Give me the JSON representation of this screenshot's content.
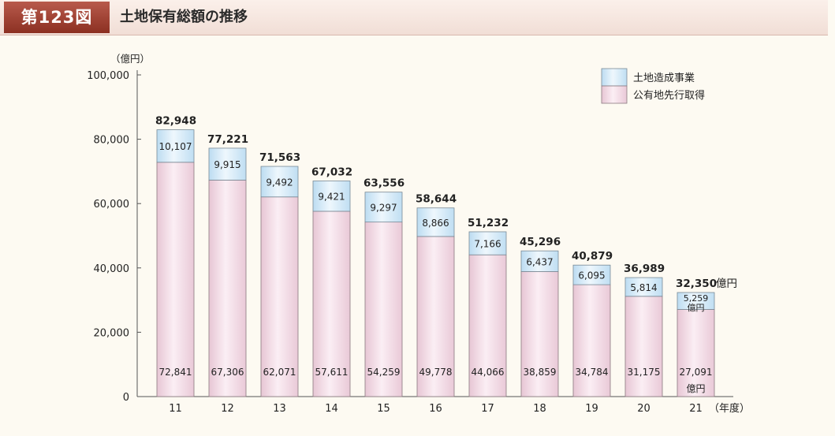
{
  "header": {
    "figure_number": "第123図",
    "title": "土地保有総額の推移"
  },
  "chart_data": {
    "type": "bar",
    "stacked": true,
    "categories": [
      "11",
      "12",
      "13",
      "14",
      "15",
      "16",
      "17",
      "18",
      "19",
      "20",
      "21"
    ],
    "series": [
      {
        "name": "公有地先行取得",
        "color": "#f2dbe6",
        "values": [
          72841,
          67306,
          62071,
          57611,
          54259,
          49778,
          44066,
          38859,
          34784,
          31175,
          27091
        ]
      },
      {
        "name": "土地造成事業",
        "color": "#d6eaf7",
        "values": [
          10107,
          9915,
          9492,
          9421,
          9297,
          8866,
          7166,
          6437,
          6095,
          5814,
          5259
        ]
      }
    ],
    "totals": [
      82948,
      77221,
      71563,
      67032,
      63556,
      58644,
      51232,
      45296,
      40879,
      36989,
      32350
    ],
    "yunit": "（億円）",
    "xunit": "（年度）",
    "last_bar_unit": "億円",
    "ylim": [
      0,
      100000
    ],
    "yticks": [
      0,
      20000,
      40000,
      60000,
      80000,
      100000
    ],
    "ytick_labels": [
      "0",
      "20,000",
      "40,000",
      "60,000",
      "80,000",
      "100,000"
    ],
    "legend_position": "top-right",
    "grid": false
  }
}
